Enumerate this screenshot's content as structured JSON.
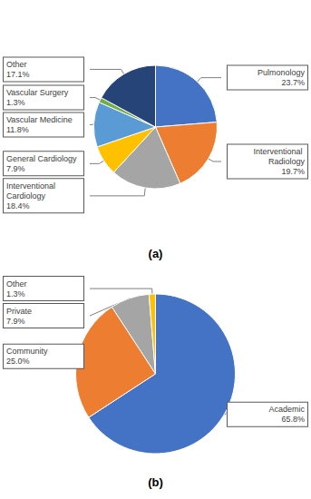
{
  "chart_data": [
    {
      "type": "pie",
      "title": "(a)",
      "categories": [
        "Pulmonology",
        "Interventional Radiology",
        "Interventional Cardiology",
        "General Cardiology",
        "Vascular Medicine",
        "Vascular Surgery",
        "Other"
      ],
      "values": [
        23.7,
        19.7,
        18.4,
        7.9,
        11.8,
        1.3,
        17.1
      ],
      "value_labels": [
        "23.7%",
        "19.7%",
        "18.4%",
        "7.9%",
        "11.8%",
        "1.3%",
        "17.1%"
      ],
      "colors": [
        "#4472c4",
        "#ed7d31",
        "#a5a5a5",
        "#ffc000",
        "#5b9bd5",
        "#70ad47",
        "#264478"
      ],
      "data_labels": true
    },
    {
      "type": "pie",
      "title": "(b)",
      "categories": [
        "Academic",
        "Community",
        "Private",
        "Other"
      ],
      "values": [
        65.8,
        25,
        7.9,
        1.3
      ],
      "value_labels": [
        "65.8%",
        "25.0%",
        "7.9%",
        "1.3%"
      ],
      "colors": [
        "#4472c4",
        "#ed7d31",
        "#a5a5a5",
        "#ffc000"
      ],
      "data_labels": true
    }
  ]
}
